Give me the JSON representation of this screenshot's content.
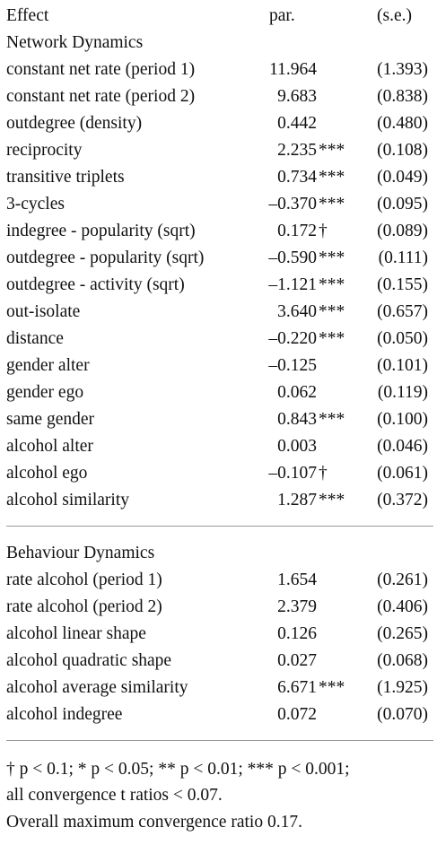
{
  "header": {
    "effect": "Effect",
    "par": "par.",
    "se": "(s.e.)"
  },
  "network": {
    "title": "Network Dynamics",
    "rows": [
      {
        "effect": "constant net rate (period 1)",
        "par": "11.964",
        "sig": "",
        "se": "(1.393)"
      },
      {
        "effect": "constant net rate (period 2)",
        "par": "9.683",
        "sig": "",
        "se": "(0.838)"
      },
      {
        "effect": "outdegree (density)",
        "par": "0.442",
        "sig": "",
        "se": "(0.480)"
      },
      {
        "effect": "reciprocity",
        "par": "2.235",
        "sig": "***",
        "se": "(0.108)"
      },
      {
        "effect": "transitive triplets",
        "par": "0.734",
        "sig": "***",
        "se": "(0.049)"
      },
      {
        "effect": "3-cycles",
        "par": "–0.370",
        "sig": "***",
        "se": "(0.095)"
      },
      {
        "effect": "indegree - popularity (sqrt)",
        "par": "0.172",
        "sig": "†",
        "se": "(0.089)"
      },
      {
        "effect": "outdegree - popularity (sqrt)",
        "par": "–0.590",
        "sig": "***",
        "se": "(0.111)"
      },
      {
        "effect": "outdegree - activity (sqrt)",
        "par": "–1.121",
        "sig": "***",
        "se": "(0.155)"
      },
      {
        "effect": "out-isolate",
        "par": "3.640",
        "sig": "***",
        "se": "(0.657)"
      },
      {
        "effect": "distance",
        "par": "–0.220",
        "sig": "***",
        "se": "(0.050)"
      },
      {
        "effect": "gender alter",
        "par": "–0.125",
        "sig": "",
        "se": "(0.101)"
      },
      {
        "effect": "gender ego",
        "par": "0.062",
        "sig": "",
        "se": "(0.119)"
      },
      {
        "effect": "same gender",
        "par": "0.843",
        "sig": "***",
        "se": "(0.100)"
      },
      {
        "effect": "alcohol alter",
        "par": "0.003",
        "sig": "",
        "se": "(0.046)"
      },
      {
        "effect": "alcohol ego",
        "par": "–0.107",
        "sig": "†",
        "se": "(0.061)"
      },
      {
        "effect": "alcohol similarity",
        "par": "1.287",
        "sig": "***",
        "se": "(0.372)"
      }
    ]
  },
  "behaviour": {
    "title": "Behaviour Dynamics",
    "rows": [
      {
        "effect": "rate alcohol (period 1)",
        "par": "1.654",
        "sig": "",
        "se": "(0.261)"
      },
      {
        "effect": "rate alcohol (period 2)",
        "par": "2.379",
        "sig": "",
        "se": "(0.406)"
      },
      {
        "effect": "alcohol linear shape",
        "par": "0.126",
        "sig": "",
        "se": "(0.265)"
      },
      {
        "effect": "alcohol quadratic shape",
        "par": "0.027",
        "sig": "",
        "se": "(0.068)"
      },
      {
        "effect": "alcohol average similarity",
        "par": "6.671",
        "sig": "***",
        "se": "(1.925)"
      },
      {
        "effect": "alcohol indegree",
        "par": "0.072",
        "sig": "",
        "se": "(0.070)"
      }
    ]
  },
  "notes": [
    "† p < 0.1; * p < 0.05; ** p < 0.01; *** p < 0.001;",
    "all convergence t ratios < 0.07.",
    "Overall maximum convergence ratio 0.17."
  ]
}
